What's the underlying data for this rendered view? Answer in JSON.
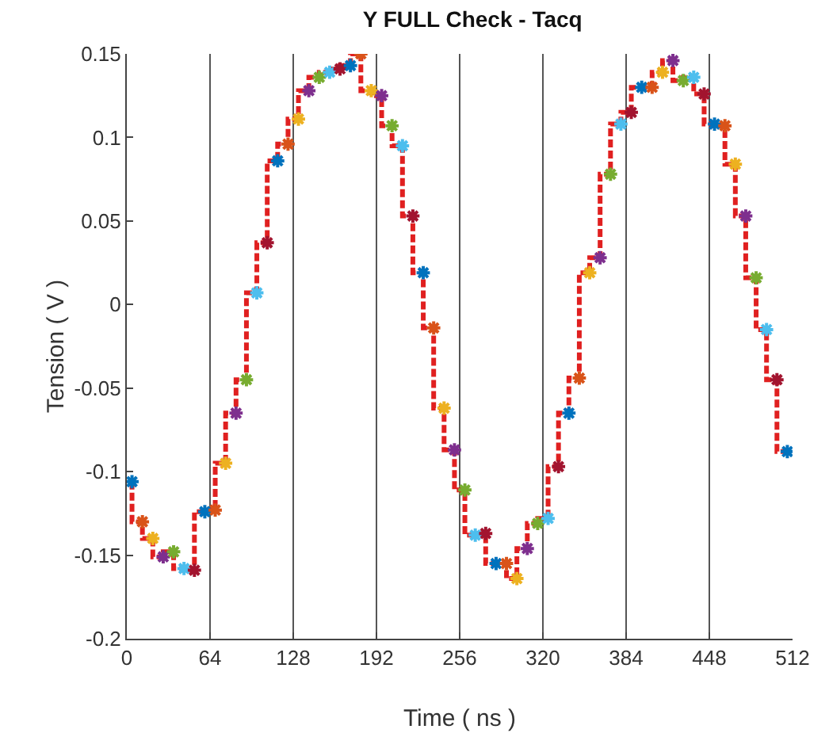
{
  "chart_data": {
    "type": "step",
    "title": "Y FULL Check - Tacq",
    "xlabel": "Time ( ns )",
    "ylabel": "Tension ( V )",
    "x": [
      4,
      12,
      20,
      28,
      36,
      44,
      52,
      60,
      68,
      76,
      84,
      92,
      100,
      108,
      116,
      124,
      132,
      140,
      148,
      156,
      164,
      172,
      180,
      188,
      196,
      204,
      212,
      220,
      228,
      236,
      244,
      252,
      260,
      268,
      276,
      284,
      292,
      300,
      308,
      316,
      324,
      332,
      340,
      348,
      356,
      364,
      372,
      380,
      388,
      396,
      404,
      412,
      420,
      428,
      436,
      444,
      452,
      460,
      468,
      476,
      484,
      492,
      500,
      508
    ],
    "series": [
      {
        "type": "step",
        "color": "#e02020",
        "line_style": "dashed",
        "marker": "none",
        "values": [
          -0.106,
          -0.13,
          -0.14,
          -0.151,
          -0.148,
          -0.158,
          -0.159,
          -0.124,
          -0.123,
          -0.095,
          -0.065,
          -0.045,
          0.007,
          0.037,
          0.086,
          0.096,
          0.111,
          0.128,
          0.136,
          0.139,
          0.141,
          0.143,
          0.15,
          0.128,
          0.125,
          0.107,
          0.095,
          0.053,
          0.019,
          -0.014,
          -0.062,
          -0.087,
          -0.111,
          -0.138,
          -0.137,
          -0.155,
          -0.155,
          -0.164,
          -0.146,
          -0.131,
          -0.128,
          -0.097,
          -0.065,
          -0.044,
          0.019,
          0.028,
          0.078,
          0.108,
          0.115,
          0.13,
          0.13,
          0.139,
          0.146,
          0.134,
          0.136,
          0.126,
          0.108,
          0.107,
          0.084,
          0.053,
          0.016,
          -0.015,
          -0.045,
          -0.088
        ]
      },
      {
        "type": "scatter",
        "marker": "cross",
        "colors": [
          "#0072bd",
          "#d95319",
          "#edb120",
          "#7e2f8e",
          "#77ac30",
          "#4dbeee",
          "#a2142f",
          "#0072bd",
          "#d95319",
          "#edb120",
          "#7e2f8e",
          "#77ac30",
          "#4dbeee",
          "#a2142f",
          "#0072bd",
          "#d95319",
          "#edb120",
          "#7e2f8e",
          "#77ac30",
          "#4dbeee",
          "#a2142f",
          "#0072bd",
          "#d95319",
          "#edb120",
          "#7e2f8e",
          "#77ac30",
          "#4dbeee",
          "#a2142f",
          "#0072bd",
          "#d95319",
          "#edb120",
          "#7e2f8e",
          "#77ac30",
          "#4dbeee",
          "#a2142f",
          "#0072bd",
          "#d95319",
          "#edb120",
          "#7e2f8e",
          "#77ac30",
          "#4dbeee",
          "#a2142f",
          "#0072bd",
          "#d95319",
          "#edb120",
          "#7e2f8e",
          "#77ac30",
          "#4dbeee",
          "#a2142f",
          "#0072bd",
          "#d95319",
          "#edb120",
          "#7e2f8e",
          "#77ac30",
          "#4dbeee",
          "#a2142f",
          "#0072bd",
          "#d95319",
          "#edb120",
          "#7e2f8e",
          "#77ac30",
          "#4dbeee",
          "#a2142f",
          "#0072bd"
        ],
        "values": [
          -0.106,
          -0.13,
          -0.14,
          -0.151,
          -0.148,
          -0.158,
          -0.159,
          -0.124,
          -0.123,
          -0.095,
          -0.065,
          -0.045,
          0.007,
          0.037,
          0.086,
          0.096,
          0.111,
          0.128,
          0.136,
          0.139,
          0.141,
          0.143,
          0.15,
          0.128,
          0.125,
          0.107,
          0.095,
          0.053,
          0.019,
          -0.014,
          -0.062,
          -0.087,
          -0.111,
          -0.138,
          -0.137,
          -0.155,
          -0.155,
          -0.164,
          -0.146,
          -0.131,
          -0.128,
          -0.097,
          -0.065,
          -0.044,
          0.019,
          0.028,
          0.078,
          0.108,
          0.115,
          0.13,
          0.13,
          0.139,
          0.146,
          0.134,
          0.136,
          0.126,
          0.108,
          0.107,
          0.084,
          0.053,
          0.016,
          -0.015,
          -0.045,
          -0.088
        ]
      }
    ],
    "xlim": [
      0,
      512
    ],
    "xticks": [
      0,
      64,
      128,
      192,
      256,
      320,
      384,
      448,
      512
    ],
    "ylim": [
      -0.2,
      0.15
    ],
    "yticks": [
      -0.2,
      -0.15,
      -0.1,
      -0.05,
      0,
      0.05,
      0.1,
      0.15
    ],
    "grid": "x"
  }
}
